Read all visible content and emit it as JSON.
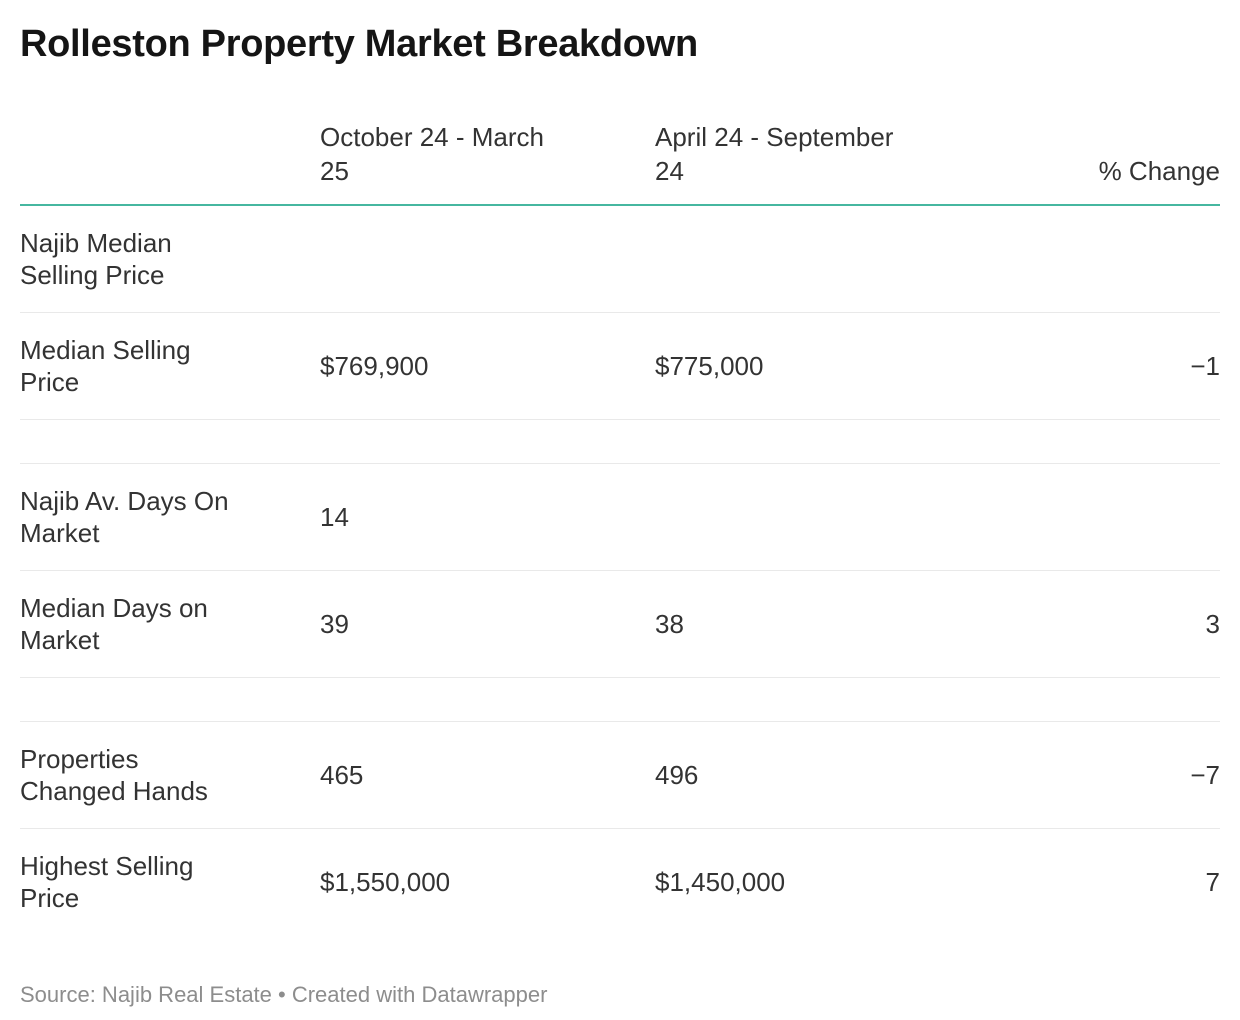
{
  "title": "Rolleston Property Market Breakdown",
  "colors": {
    "accent": "#46b7a0",
    "divider": "#e9e9e9",
    "title": "#151515",
    "body": "#333333",
    "footer": "#8d8d8d"
  },
  "chart_data": {
    "type": "table",
    "title": "Rolleston Property Market Breakdown",
    "columns": [
      "",
      "October 24 - March 25",
      "April 24 - September 24",
      "% Change"
    ],
    "rows": [
      {
        "metric": "Najib Median Selling Price",
        "oct24_mar25": null,
        "apr24_sep24": null,
        "pct_change": null
      },
      {
        "metric": "Median Selling Price",
        "oct24_mar25": "$769,900",
        "apr24_sep24": "$775,000",
        "pct_change": -1
      },
      {
        "metric": "Najib Av. Days On Market",
        "oct24_mar25": 14,
        "apr24_sep24": null,
        "pct_change": null
      },
      {
        "metric": "Median Days on Market",
        "oct24_mar25": 39,
        "apr24_sep24": 38,
        "pct_change": 3
      },
      {
        "metric": "Properties Changed Hands",
        "oct24_mar25": 465,
        "apr24_sep24": 496,
        "pct_change": -7
      },
      {
        "metric": "Highest Selling Price",
        "oct24_mar25": "$1,550,000",
        "apr24_sep24": "$1,450,000",
        "pct_change": 7
      }
    ],
    "source": "Najib Real Estate",
    "layout": {
      "change_column_align": "right",
      "header_rule_color": "#46b7a0",
      "grid": "horizontal-dividers"
    }
  },
  "table": {
    "headers": {
      "metric": "",
      "period1": "October 24 - March\n25",
      "period2": "April 24 - September\n24",
      "change": "% Change"
    },
    "rows": [
      {
        "label": "Najib Median\nSelling Price",
        "period1": "",
        "period2": "",
        "change": ""
      },
      {
        "label": "Median Selling\nPrice",
        "period1": "$769,900",
        "period2": "$775,000",
        "change": "−1"
      },
      {
        "label": "",
        "period1": "",
        "period2": "",
        "change": ""
      },
      {
        "label": "Najib Av. Days On\nMarket",
        "period1": "14",
        "period2": "",
        "change": ""
      },
      {
        "label": "Median Days on\nMarket",
        "period1": "39",
        "period2": "38",
        "change": "3"
      },
      {
        "label": "",
        "period1": "",
        "period2": "",
        "change": ""
      },
      {
        "label": "Properties\nChanged Hands",
        "period1": "465",
        "period2": "496",
        "change": "−7"
      },
      {
        "label": "Highest Selling\nPrice",
        "period1": "$1,550,000",
        "period2": "$1,450,000",
        "change": "7"
      }
    ]
  },
  "footer": {
    "source": "Source: Najib Real Estate",
    "separator": " • ",
    "attribution_prefix": "Created with ",
    "attribution_link": "Datawrapper"
  }
}
